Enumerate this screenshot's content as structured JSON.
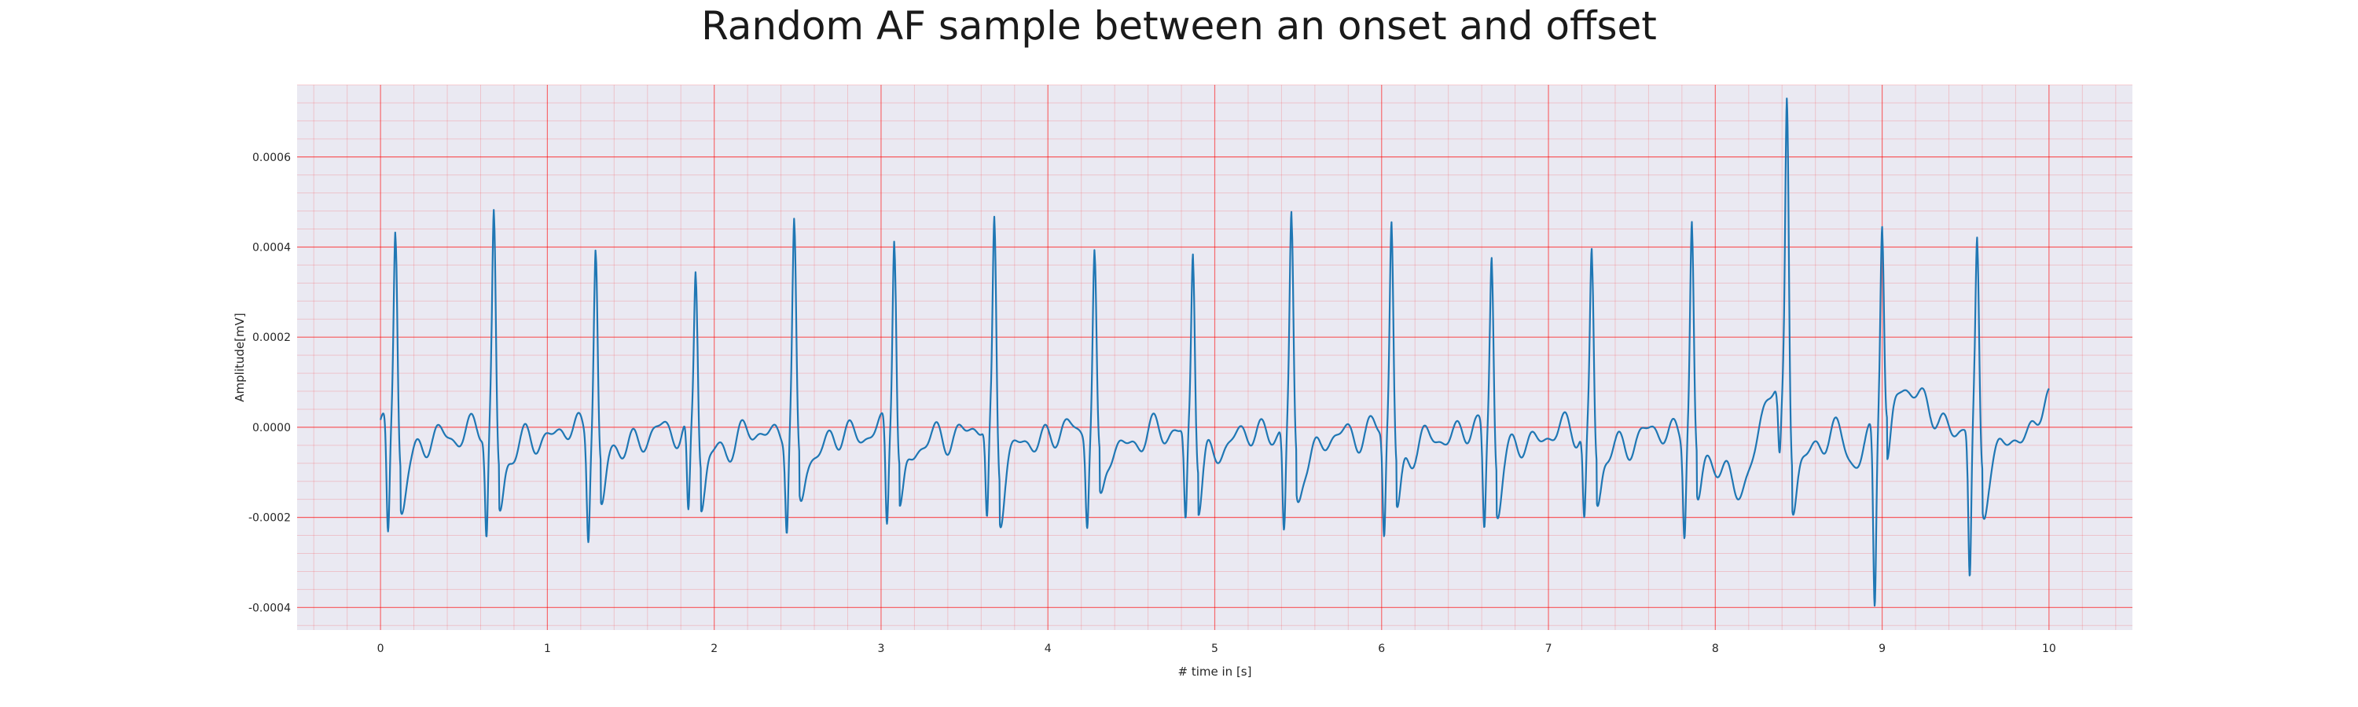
{
  "chart_data": {
    "type": "line",
    "title": "Random AF sample between an onset and offset",
    "xlabel": "# time in [s]",
    "ylabel": "Amplitude[mV]",
    "xlim": [
      -0.5,
      10.5
    ],
    "ylim": [
      -0.00045,
      0.00076
    ],
    "x_ticks": [
      "0",
      "1",
      "2",
      "3",
      "4",
      "5",
      "6",
      "7",
      "8",
      "9",
      "10"
    ],
    "y_ticks": [
      "0.0006",
      "0.0004",
      "0.0002",
      "0.0000",
      "-0.0002",
      "-0.0004"
    ],
    "grid": true,
    "minor_grid": true,
    "line_color": "#1f77b4",
    "grid_color": "#ff0000",
    "background_color": "#eae9f2",
    "beats": [
      {
        "t": 0.09,
        "peak": 0.000445,
        "trough": -0.000255
      },
      {
        "t": 0.68,
        "peak": 0.00048,
        "trough": -0.00024
      },
      {
        "t": 1.29,
        "peak": 0.00042,
        "trough": -0.00022
      },
      {
        "t": 1.89,
        "peak": 0.00037,
        "trough": -0.00021
      },
      {
        "t": 2.48,
        "peak": 0.000435,
        "trough": -0.00021
      },
      {
        "t": 3.08,
        "peak": 0.000455,
        "trough": -0.00023
      },
      {
        "t": 3.68,
        "peak": 0.00047,
        "trough": -0.000215
      },
      {
        "t": 4.28,
        "peak": 0.0004,
        "trough": -0.00019
      },
      {
        "t": 4.87,
        "peak": 0.000405,
        "trough": -0.00021
      },
      {
        "t": 5.46,
        "peak": 0.00046,
        "trough": -0.000235
      },
      {
        "t": 6.06,
        "peak": 0.00047,
        "trough": -0.00024
      },
      {
        "t": 6.66,
        "peak": 0.0004,
        "trough": -0.000225
      },
      {
        "t": 7.26,
        "peak": 0.0004,
        "trough": -0.000205
      },
      {
        "t": 7.86,
        "peak": 0.00045,
        "trough": -0.000215
      },
      {
        "t": 8.43,
        "peak": 0.00071,
        "trough": -0.000155
      },
      {
        "t": 9.0,
        "peak": 0.00043,
        "trough": -0.0004
      },
      {
        "t": 9.57,
        "peak": 0.0004,
        "trough": -0.00034
      }
    ]
  }
}
